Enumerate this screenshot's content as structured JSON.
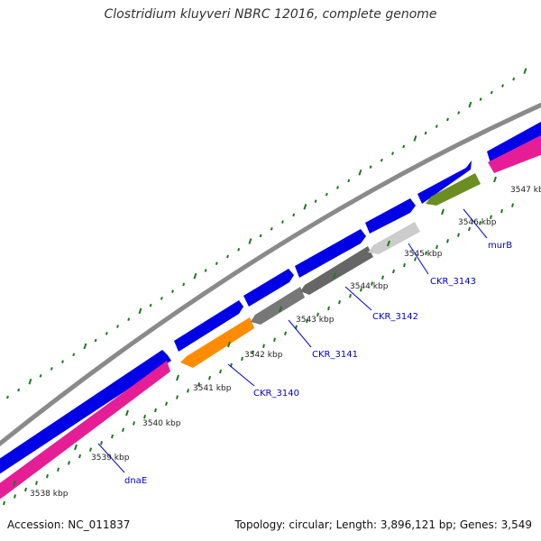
{
  "title": "Clostridium kluyveri NBRC 12016, complete genome",
  "footer": {
    "accession": "Accession: NC_011837",
    "summary": "Topology: circular; Length: 3,896,121 bp; Genes: 3,549"
  },
  "colors": {
    "backbone": "#8a8a8a",
    "forward_strand": "#0000e6",
    "reverse_strand": "#e61e96",
    "tick": "#1b7a1b",
    "label_line": "#0000cc",
    "gene_CKR_3140": "#ff8c00",
    "gene_CKR_3141": "#777777",
    "gene_CKR_3142": "#666666",
    "gene_CKR_3143": "#cccccc",
    "gene_murB": "#6b8e23"
  },
  "scale": {
    "ticks": [
      "3538 kbp",
      "3539 kbp",
      "3540 kbp",
      "3541 kbp",
      "3542 kbp",
      "3543 kbp",
      "3544 kbp",
      "3545 kbp",
      "3546 kbp",
      "3547 kbp"
    ]
  },
  "genes": [
    {
      "label": "dnaE",
      "strand": "reverse"
    },
    {
      "label": "CKR_3140",
      "strand": "reverse"
    },
    {
      "label": "CKR_3141",
      "strand": "reverse"
    },
    {
      "label": "CKR_3142",
      "strand": "reverse"
    },
    {
      "label": "CKR_3143",
      "strand": "reverse"
    },
    {
      "label": "murB",
      "strand": "reverse"
    }
  ]
}
